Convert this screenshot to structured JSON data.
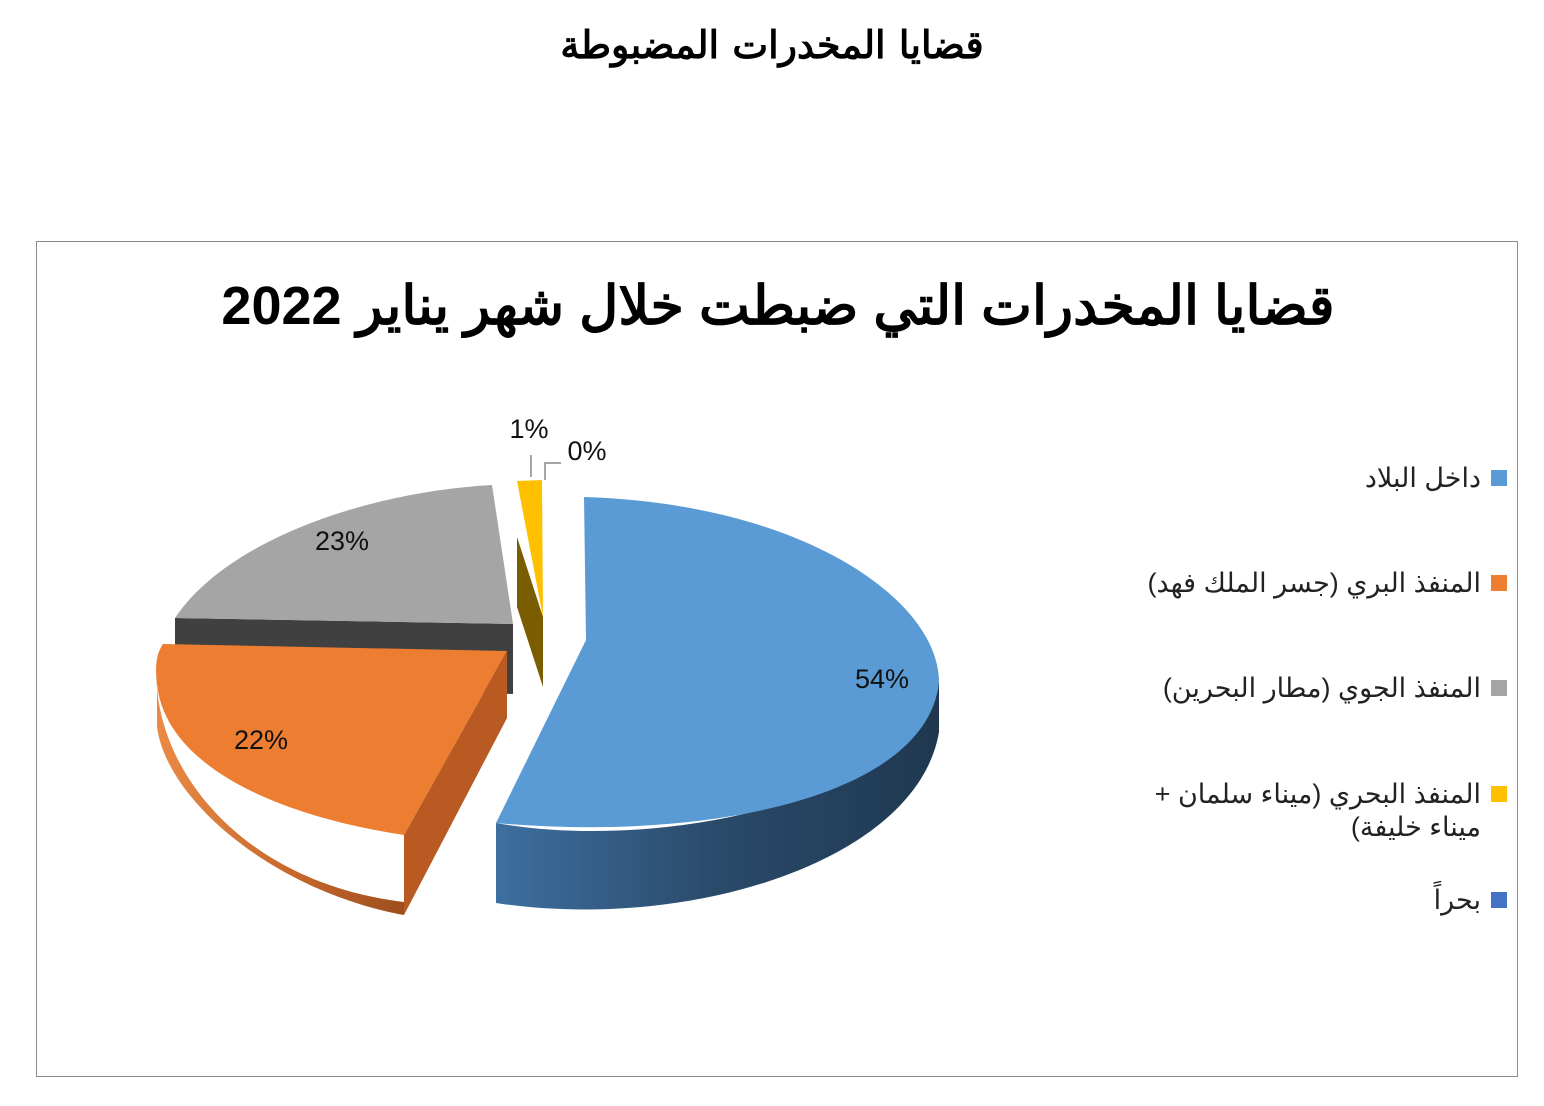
{
  "page": {
    "heading": "قضايا المخدرات المضبوطة"
  },
  "chart_data": {
    "type": "pie",
    "title": "قضايا المخدرات التي ضبطت خلال شهر يناير 2022",
    "legend_position": "right",
    "three_d": true,
    "exploded": true,
    "slices": [
      {
        "name": "داخل البلاد",
        "value": 54,
        "label": "54%",
        "color": "#5B9BD5"
      },
      {
        "name": "المنفذ البري (جسر الملك فهد)",
        "value": 22,
        "label": "22%",
        "color": "#ED7D31"
      },
      {
        "name": "المنفذ الجوي (مطار البحرين)",
        "value": 23,
        "label": "23%",
        "color": "#A5A5A5"
      },
      {
        "name": "المنفذ البحري (ميناء سلمان + ميناء خليفة)",
        "value": 1,
        "label": "1%",
        "color": "#FFC000"
      },
      {
        "name": "بحراً",
        "value": 0,
        "label": "0%",
        "color": "#4472C4"
      }
    ]
  }
}
